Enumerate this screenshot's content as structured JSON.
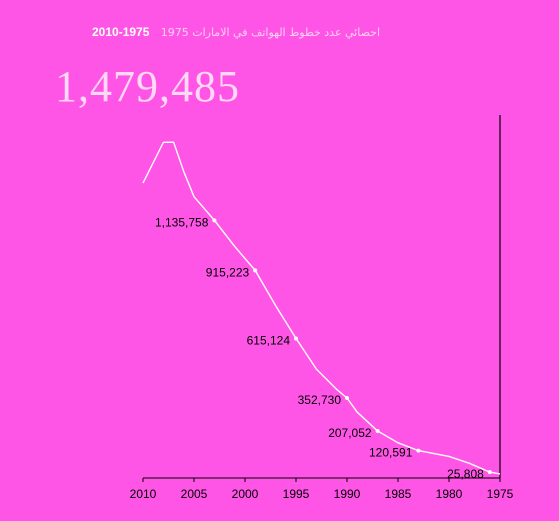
{
  "title": {
    "years": "2010-1975",
    "arabic": "احصائي عدد خطوط الهواتف في الامارات 1975"
  },
  "peak_label": "1,479,485",
  "colors": {
    "background": "#ff55e6",
    "line": "#ffffff",
    "axis": "#000000"
  },
  "chart_data": {
    "type": "line",
    "title": "احصائي عدد خطوط الهواتف في الامارات 1975 2010-1975",
    "xlabel": "",
    "ylabel": "",
    "xlim": [
      2010,
      1975
    ],
    "ylim": [
      0,
      1600000
    ],
    "x_ticks": [
      2010,
      2005,
      2000,
      1995,
      1990,
      1985,
      1980,
      1975
    ],
    "x_tick_labels": [
      "2010",
      "2005",
      "2000",
      "1995",
      "1990",
      "1985",
      "1980",
      "1975"
    ],
    "grid": false,
    "series": [
      {
        "x": [
          2010,
          2008,
          2007,
          2006,
          2005,
          2003,
          2001,
          1999,
          1997,
          1995,
          1993,
          1991,
          1990,
          1989,
          1987,
          1985,
          1983,
          1980,
          1978,
          1976,
          1975
        ],
        "y": [
          1300000,
          1479485,
          1480000,
          1350000,
          1240000,
          1135758,
          1020000,
          915223,
          760000,
          615124,
          480000,
          390000,
          352730,
          290000,
          207052,
          155000,
          120591,
          95000,
          65000,
          25808,
          18000
        ]
      }
    ],
    "data_labels": [
      {
        "x": 2008,
        "y": 1479485,
        "text": "1,479,485"
      },
      {
        "x": 2003,
        "y": 1135758,
        "text": "1,135,758"
      },
      {
        "x": 1999,
        "y": 915223,
        "text": "915,223"
      },
      {
        "x": 1995,
        "y": 615124,
        "text": "615,124"
      },
      {
        "x": 1990,
        "y": 352730,
        "text": "352,730"
      },
      {
        "x": 1987,
        "y": 207052,
        "text": "207,052"
      },
      {
        "x": 1983,
        "y": 120591,
        "text": "120,591"
      },
      {
        "x": 1976,
        "y": 25808,
        "text": "25,808"
      }
    ]
  }
}
